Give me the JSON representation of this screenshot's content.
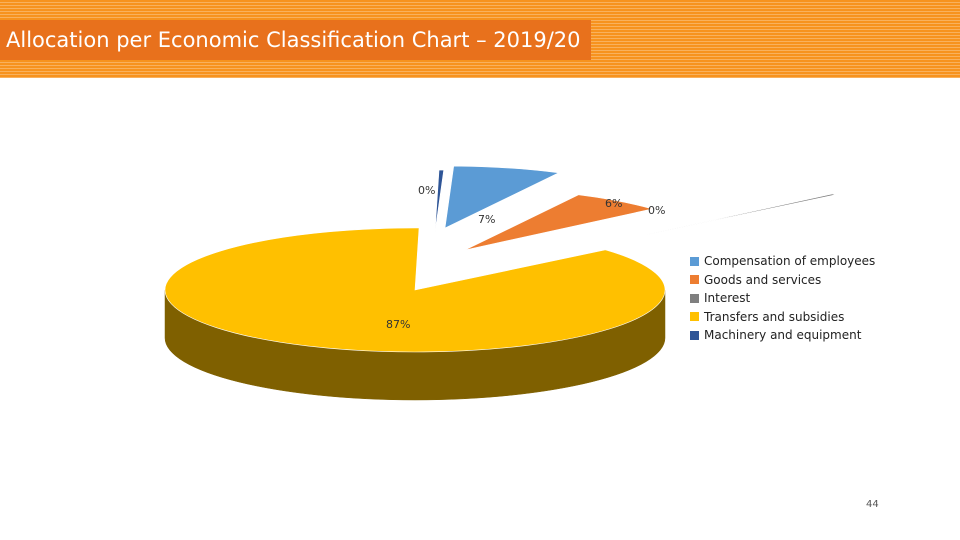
{
  "slide": {
    "title": "Allocation per Economic Classification Chart – 2019/20",
    "page_number": "44"
  },
  "chart_data": {
    "type": "pie",
    "style": "3d-exploded",
    "title": "",
    "legend_position": "right",
    "slices": [
      {
        "name": "Compensation of employees",
        "value": 7,
        "label": "7%",
        "color": "#5b9bd5",
        "side_color": "#3a6a98"
      },
      {
        "name": "Goods and services",
        "value": 6,
        "label": "6%",
        "color": "#ed7d31",
        "side_color": "#a4531c"
      },
      {
        "name": "Interest",
        "value": 0.3,
        "label": "0%",
        "color": "#7f7f7f",
        "side_color": "#4d4d4d"
      },
      {
        "name": "Transfers and subsidies",
        "value": 87,
        "label": "87%",
        "color": "#ffc000",
        "side_color": "#7f6000"
      },
      {
        "name": "Machinery and equipment",
        "value": 0.3,
        "label": "0%",
        "color": "#2e5597",
        "side_color": "#1d3660"
      }
    ]
  }
}
